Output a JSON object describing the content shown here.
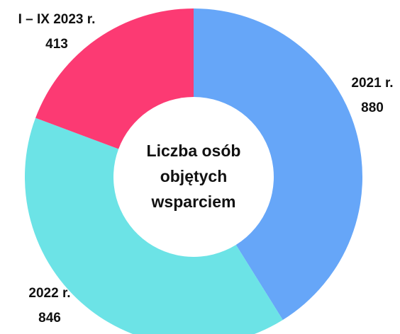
{
  "chart_data": {
    "type": "donut",
    "center_label": "Liczba osób objętych wsparciem",
    "categories": [
      "2021 r.",
      "2022 r.",
      "I – IX 2023 r."
    ],
    "values": [
      880,
      846,
      413
    ],
    "colors": [
      "#66a6f8",
      "#6ce3e6",
      "#fc3a73"
    ]
  }
}
